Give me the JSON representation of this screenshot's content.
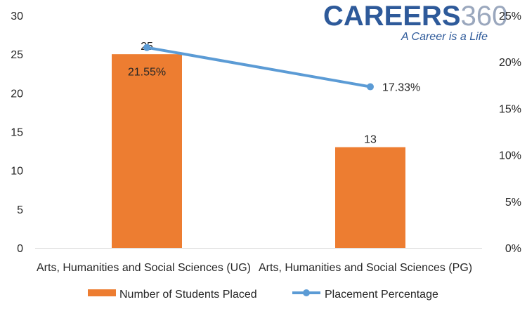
{
  "brand": {
    "name_word": "CAREERS",
    "name_number": "360",
    "tagline": "A Career is a Life",
    "word_color": "#2e5a9a",
    "number_color": "#9aa7bd"
  },
  "chart_data": {
    "type": "bar",
    "categories": [
      "Arts, Humanities and Social Sciences (UG)",
      "Arts, Humanities and Social Sciences (PG)"
    ],
    "series": [
      {
        "name": "Number of Students Placed",
        "type": "bar",
        "axis": "left",
        "values": [
          25,
          13
        ],
        "labels": [
          "25",
          "13"
        ],
        "color": "#ed7d31"
      },
      {
        "name": "Placement Percentage",
        "type": "line",
        "axis": "right",
        "values": [
          21.55,
          17.33
        ],
        "labels": [
          "21.55%",
          "17.33%"
        ],
        "color": "#5b9bd5"
      }
    ],
    "y_left": {
      "min": 0,
      "max": 30,
      "step": 5,
      "ticks": [
        "0",
        "5",
        "10",
        "15",
        "20",
        "25",
        "30"
      ]
    },
    "y_right": {
      "min": 0,
      "max": 25,
      "step": 5,
      "ticks": [
        "0%",
        "5%",
        "10%",
        "15%",
        "20%",
        "25%"
      ]
    },
    "grid": false,
    "legend_position": "bottom"
  }
}
